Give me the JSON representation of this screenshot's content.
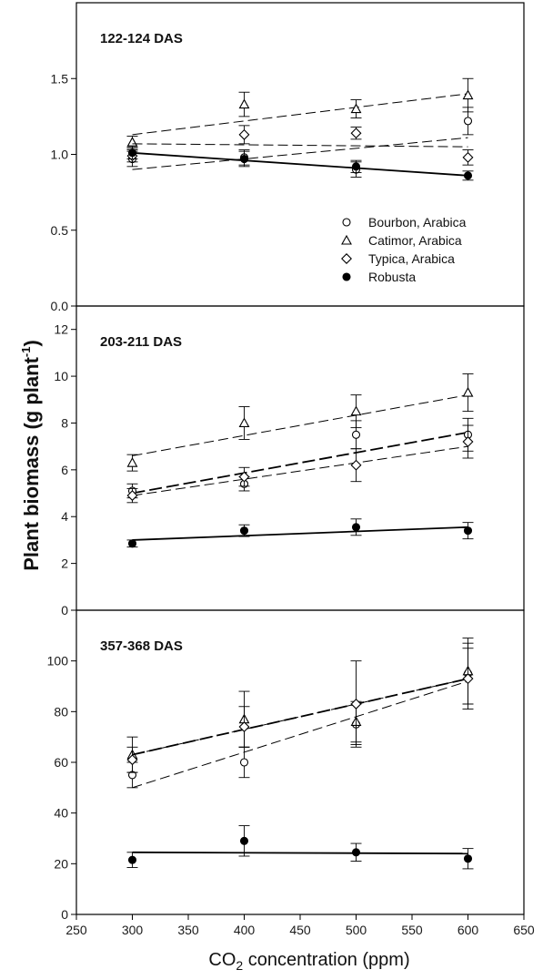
{
  "chart_data": {
    "type": "scatter",
    "ylabel": "Plant biomass (g plant",
    "ylabel_sup": "-1",
    "ylabel_close": ")",
    "xlabel_pre": "CO",
    "xlabel_sub": "2",
    "xlabel_post": " concentration (ppm)",
    "xlim": [
      250,
      650
    ],
    "xticks": [
      "250",
      "300",
      "350",
      "400",
      "450",
      "500",
      "550",
      "600",
      "650"
    ],
    "legend": {
      "position": "bottom-right of top panel",
      "entries": [
        {
          "label": "Bourbon, Arabica",
          "marker": "circle-open"
        },
        {
          "label": "Catimor, Arabica",
          "marker": "triangle-open"
        },
        {
          "label": "Typica, Arabica",
          "marker": "diamond-open"
        },
        {
          "label": "Robusta",
          "marker": "circle-filled"
        }
      ]
    },
    "panels": [
      {
        "title": "122-124 DAS",
        "ylim": [
          0,
          2.0
        ],
        "yticks": [
          "0.0",
          "0.5",
          "1.0",
          "1.5"
        ],
        "series": [
          {
            "marker": "circle-open",
            "line": "dash",
            "x": [
              300,
              400,
              500,
              600
            ],
            "y": [
              0.97,
              0.98,
              0.9,
              1.22
            ],
            "err": [
              0.05,
              0.05,
              0.05,
              0.09
            ],
            "fit": [
              0.9,
              1.11
            ]
          },
          {
            "marker": "triangle-open",
            "line": "dash",
            "x": [
              300,
              400,
              500,
              600
            ],
            "y": [
              1.08,
              1.33,
              1.3,
              1.39
            ],
            "err": [
              0.04,
              0.08,
              0.06,
              0.11
            ],
            "fit": [
              1.13,
              1.4
            ]
          },
          {
            "marker": "diamond-open",
            "line": "dash",
            "x": [
              300,
              400,
              500,
              600
            ],
            "y": [
              0.99,
              1.13,
              1.14,
              0.98
            ],
            "err": [
              0.04,
              0.06,
              0.04,
              0.05
            ],
            "fit": [
              1.07,
              1.05
            ]
          },
          {
            "marker": "circle-filled",
            "line": "solid",
            "x": [
              300,
              400,
              500,
              600
            ],
            "y": [
              1.01,
              0.97,
              0.92,
              0.86
            ],
            "err": [
              0.04,
              0.05,
              0.04,
              0.03
            ],
            "fit": [
              1.01,
              0.86
            ]
          }
        ]
      },
      {
        "title": "203-211 DAS",
        "ylim": [
          0,
          13
        ],
        "yticks": [
          "0",
          "2",
          "4",
          "6",
          "8",
          "10",
          "12"
        ],
        "series": [
          {
            "marker": "circle-open",
            "line": "dash-bold",
            "x": [
              300,
              400,
              500,
              600
            ],
            "y": [
              5.1,
              5.4,
              7.5,
              7.5
            ],
            "err": [
              0.3,
              0.3,
              0.6,
              0.7
            ],
            "fit": [
              5.0,
              7.6
            ]
          },
          {
            "marker": "triangle-open",
            "line": "dash",
            "x": [
              300,
              400,
              500,
              600
            ],
            "y": [
              6.3,
              8.0,
              8.5,
              9.3
            ],
            "err": [
              0.35,
              0.7,
              0.7,
              0.8
            ],
            "fit": [
              6.6,
              9.2
            ]
          },
          {
            "marker": "diamond-open",
            "line": "dash",
            "x": [
              300,
              400,
              500,
              600
            ],
            "y": [
              4.9,
              5.7,
              6.2,
              7.2
            ],
            "err": [
              0.3,
              0.4,
              0.7,
              0.7
            ],
            "fit": [
              4.9,
              7.0
            ]
          },
          {
            "marker": "circle-filled",
            "line": "solid",
            "x": [
              300,
              400,
              500,
              600
            ],
            "y": [
              2.85,
              3.4,
              3.55,
              3.4
            ],
            "err": [
              0.15,
              0.25,
              0.35,
              0.35
            ],
            "fit": [
              3.0,
              3.55
            ]
          }
        ]
      },
      {
        "title": "357-368 DAS",
        "ylim": [
          0,
          120
        ],
        "yticks": [
          "0",
          "20",
          "40",
          "60",
          "80",
          "100"
        ],
        "series": [
          {
            "marker": "circle-open",
            "line": "dash",
            "x": [
              300,
              400,
              500,
              600
            ],
            "y": [
              55,
              60,
              75,
              95
            ],
            "err": [
              5,
              6,
              8,
              12
            ],
            "fit": [
              50,
              92
            ]
          },
          {
            "marker": "triangle-open",
            "line": "dash",
            "x": [
              300,
              400,
              500,
              600
            ],
            "y": [
              63,
              77,
              76,
              96
            ],
            "err": [
              7,
              11,
              8,
              13
            ],
            "fit": [
              63,
              93
            ]
          },
          {
            "marker": "diamond-open",
            "line": "dash-bold",
            "x": [
              300,
              400,
              500,
              600
            ],
            "y": [
              61,
              74,
              83,
              93
            ],
            "err": [
              5,
              8,
              17,
              12
            ],
            "fit": [
              63,
              93
            ]
          },
          {
            "marker": "circle-filled",
            "line": "solid",
            "x": [
              300,
              400,
              500,
              600
            ],
            "y": [
              21.5,
              29,
              24.5,
              22
            ],
            "err": [
              3,
              6,
              3.5,
              4
            ],
            "fit": [
              24.5,
              24
            ]
          }
        ]
      }
    ]
  }
}
